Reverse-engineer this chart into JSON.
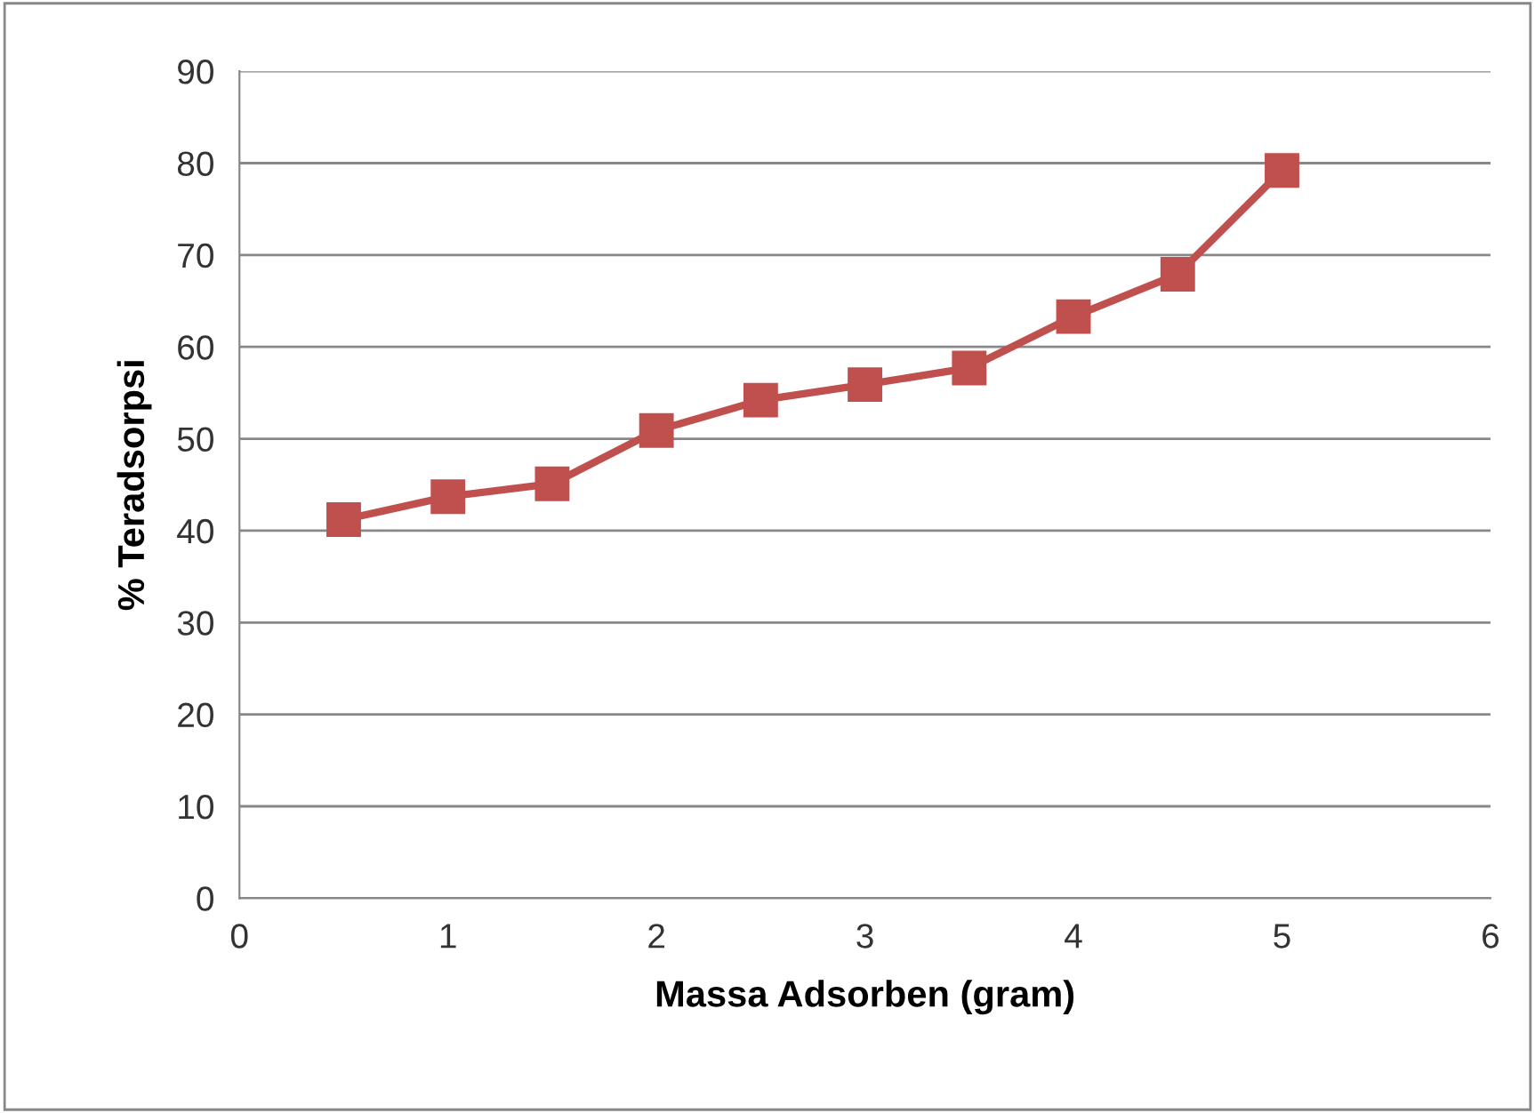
{
  "chart_data": {
    "type": "line",
    "xlabel": "Massa Adsorben (gram)",
    "ylabel": "% Teradsorpsi",
    "x": [
      0.5,
      1,
      1.5,
      2,
      2.5,
      3,
      3.5,
      4,
      4.5,
      5
    ],
    "series": [
      {
        "color": "#c0504d",
        "values": [
          41.2,
          43.7,
          45.1,
          50.9,
          54.2,
          55.9,
          57.7,
          63.3,
          67.9,
          79.2
        ]
      }
    ],
    "xlim": [
      0,
      6
    ],
    "xticks": [
      0,
      1,
      2,
      3,
      4,
      5,
      6
    ],
    "ylim": [
      0,
      90
    ],
    "yticks": [
      0,
      10,
      20,
      30,
      40,
      50,
      60,
      70,
      80,
      90
    ],
    "grid": "y",
    "marker": "square",
    "line_style": "solid"
  }
}
